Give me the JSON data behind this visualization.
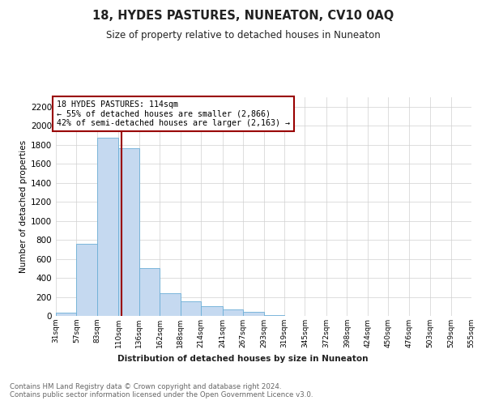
{
  "title": "18, HYDES PASTURES, NUNEATON, CV10 0AQ",
  "subtitle": "Size of property relative to detached houses in Nuneaton",
  "xlabel": "Distribution of detached houses by size in Nuneaton",
  "ylabel": "Number of detached properties",
  "property_size": 114,
  "annotation_line1": "18 HYDES PASTURES: 114sqm",
  "annotation_line2": "← 55% of detached houses are smaller (2,866)",
  "annotation_line3": "42% of semi-detached houses are larger (2,163) →",
  "bar_color": "#c5d9f0",
  "bar_edge_color": "#6baed6",
  "vline_color": "#990000",
  "annotation_box_edge": "#990000",
  "grid_color": "#d0d0d0",
  "background_color": "#ffffff",
  "footer_text": "Contains HM Land Registry data © Crown copyright and database right 2024.\nContains public sector information licensed under the Open Government Licence v3.0.",
  "bins": [
    31,
    57,
    83,
    110,
    136,
    162,
    188,
    214,
    241,
    267,
    293,
    319,
    345,
    372,
    398,
    424,
    450,
    476,
    503,
    529,
    555
  ],
  "bin_labels": [
    "31sqm",
    "57sqm",
    "83sqm",
    "110sqm",
    "136sqm",
    "162sqm",
    "188sqm",
    "214sqm",
    "241sqm",
    "267sqm",
    "293sqm",
    "319sqm",
    "345sqm",
    "372sqm",
    "398sqm",
    "424sqm",
    "450sqm",
    "476sqm",
    "503sqm",
    "529sqm",
    "555sqm"
  ],
  "bar_heights": [
    30,
    760,
    1870,
    1760,
    500,
    240,
    155,
    100,
    65,
    45,
    10,
    0,
    0,
    0,
    0,
    0,
    0,
    0,
    0,
    0
  ],
  "ylim": [
    0,
    2300
  ],
  "yticks": [
    0,
    200,
    400,
    600,
    800,
    1000,
    1200,
    1400,
    1600,
    1800,
    2000,
    2200
  ]
}
